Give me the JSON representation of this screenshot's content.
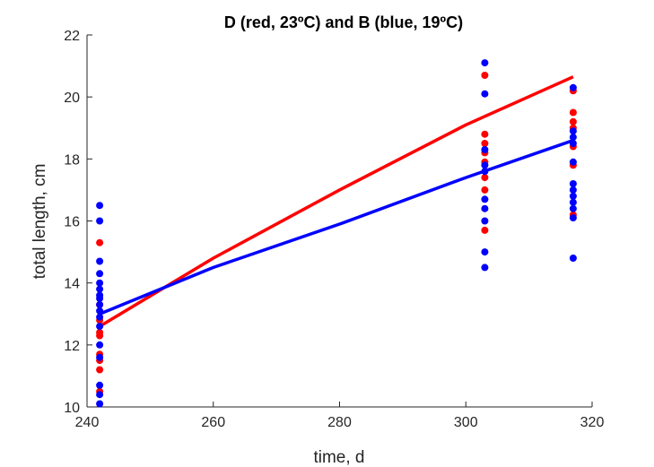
{
  "chart_data": {
    "type": "scatter",
    "title": "D (red, 23ºC) and B (blue, 19ºC)",
    "xlabel": "time, d",
    "ylabel": "total length, cm",
    "xlim": [
      240,
      320
    ],
    "ylim": [
      10,
      22
    ],
    "xticks": [
      "240",
      "260",
      "280",
      "300",
      "320"
    ],
    "yticks": [
      "10",
      "12",
      "14",
      "16",
      "18",
      "20",
      "22"
    ],
    "grid": false,
    "legend": "none",
    "series": [
      {
        "color": "#ff0000",
        "points": [
          {
            "x": 242,
            "y": 15.3
          },
          {
            "x": 242,
            "y": 13.3
          },
          {
            "x": 242,
            "y": 12.8
          },
          {
            "x": 242,
            "y": 12.4
          },
          {
            "x": 242,
            "y": 12.3
          },
          {
            "x": 242,
            "y": 11.7
          },
          {
            "x": 242,
            "y": 11.5
          },
          {
            "x": 242,
            "y": 11.2
          },
          {
            "x": 242,
            "y": 10.5
          },
          {
            "x": 303,
            "y": 20.7
          },
          {
            "x": 303,
            "y": 18.8
          },
          {
            "x": 303,
            "y": 18.5
          },
          {
            "x": 303,
            "y": 18.2
          },
          {
            "x": 303,
            "y": 17.9
          },
          {
            "x": 303,
            "y": 17.4
          },
          {
            "x": 303,
            "y": 17.0
          },
          {
            "x": 303,
            "y": 15.7
          },
          {
            "x": 317,
            "y": 20.2
          },
          {
            "x": 317,
            "y": 19.5
          },
          {
            "x": 317,
            "y": 19.2
          },
          {
            "x": 317,
            "y": 19.0
          },
          {
            "x": 317,
            "y": 18.4
          },
          {
            "x": 317,
            "y": 17.8
          },
          {
            "x": 317,
            "y": 16.2
          }
        ],
        "fit": [
          {
            "x": 242,
            "y": 12.6
          },
          {
            "x": 260,
            "y": 14.8
          },
          {
            "x": 280,
            "y": 17.0
          },
          {
            "x": 300,
            "y": 19.1
          },
          {
            "x": 317,
            "y": 20.65
          }
        ]
      },
      {
        "color": "#0000ff",
        "points": [
          {
            "x": 242,
            "y": 16.5
          },
          {
            "x": 242,
            "y": 16.0
          },
          {
            "x": 242,
            "y": 14.7
          },
          {
            "x": 242,
            "y": 14.3
          },
          {
            "x": 242,
            "y": 14.0
          },
          {
            "x": 242,
            "y": 13.8
          },
          {
            "x": 242,
            "y": 13.6
          },
          {
            "x": 242,
            "y": 13.5
          },
          {
            "x": 242,
            "y": 13.3
          },
          {
            "x": 242,
            "y": 13.1
          },
          {
            "x": 242,
            "y": 12.9
          },
          {
            "x": 242,
            "y": 12.6
          },
          {
            "x": 242,
            "y": 12.0
          },
          {
            "x": 242,
            "y": 11.6
          },
          {
            "x": 242,
            "y": 10.7
          },
          {
            "x": 242,
            "y": 10.4
          },
          {
            "x": 242,
            "y": 10.1
          },
          {
            "x": 303,
            "y": 21.1
          },
          {
            "x": 303,
            "y": 20.1
          },
          {
            "x": 303,
            "y": 18.3
          },
          {
            "x": 303,
            "y": 17.8
          },
          {
            "x": 303,
            "y": 17.6
          },
          {
            "x": 303,
            "y": 16.7
          },
          {
            "x": 303,
            "y": 16.4
          },
          {
            "x": 303,
            "y": 16.0
          },
          {
            "x": 303,
            "y": 15.0
          },
          {
            "x": 303,
            "y": 14.5
          },
          {
            "x": 317,
            "y": 20.3
          },
          {
            "x": 317,
            "y": 18.9
          },
          {
            "x": 317,
            "y": 18.7
          },
          {
            "x": 317,
            "y": 18.5
          },
          {
            "x": 317,
            "y": 17.9
          },
          {
            "x": 317,
            "y": 17.2
          },
          {
            "x": 317,
            "y": 17.0
          },
          {
            "x": 317,
            "y": 16.8
          },
          {
            "x": 317,
            "y": 16.6
          },
          {
            "x": 317,
            "y": 16.4
          },
          {
            "x": 317,
            "y": 16.1
          },
          {
            "x": 317,
            "y": 14.8
          }
        ],
        "fit": [
          {
            "x": 242,
            "y": 13.0
          },
          {
            "x": 260,
            "y": 14.5
          },
          {
            "x": 280,
            "y": 15.9
          },
          {
            "x": 300,
            "y": 17.4
          },
          {
            "x": 317,
            "y": 18.6
          }
        ]
      }
    ]
  }
}
